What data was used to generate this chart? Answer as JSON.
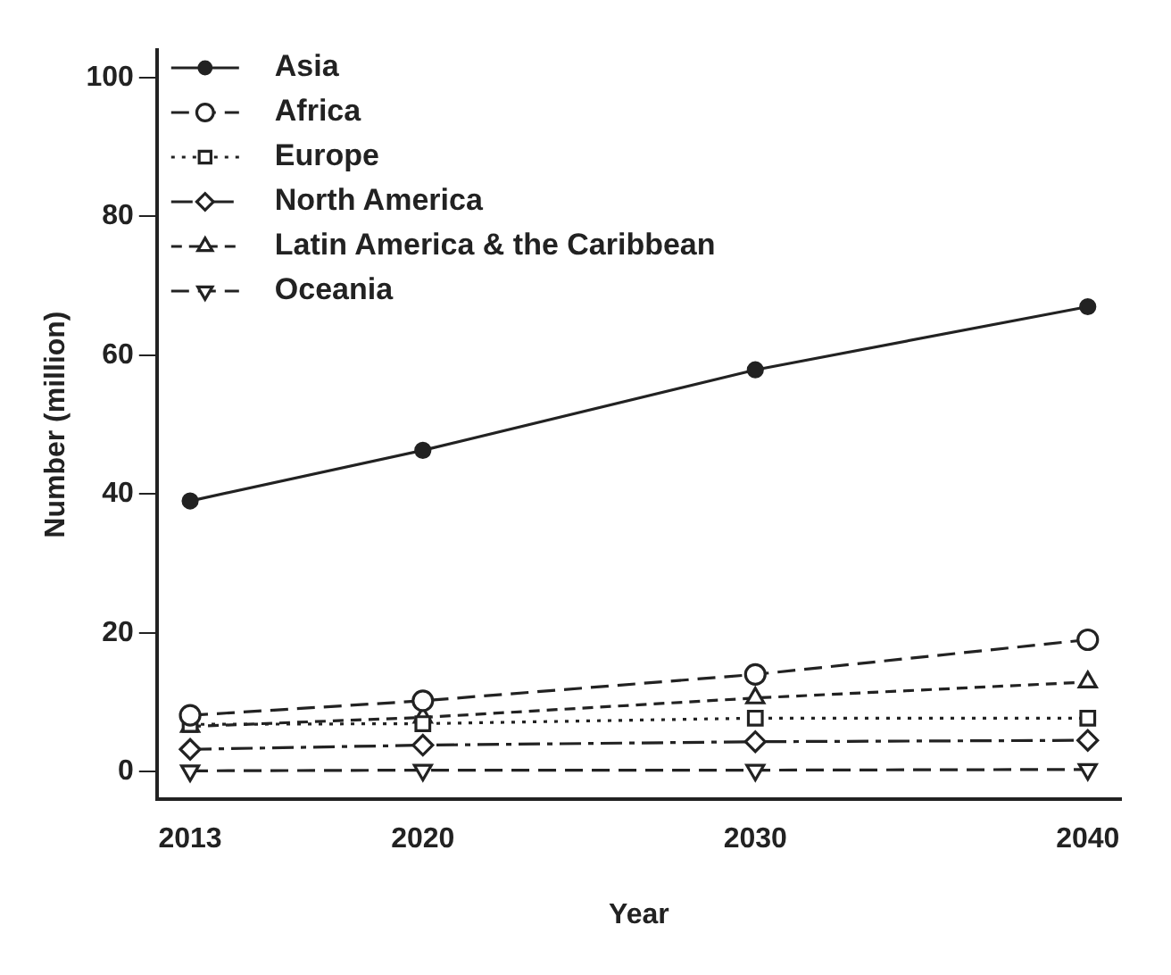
{
  "chart_data": {
    "type": "line",
    "xlabel": "Year",
    "ylabel": "Number (million)",
    "x": [
      2013,
      2020,
      2030,
      2040
    ],
    "xlim": [
      2012,
      2041
    ],
    "xticks": [
      2013,
      2020,
      2030,
      2040
    ],
    "ylim": [
      -4,
      104
    ],
    "yticks": [
      0,
      20,
      40,
      60,
      80,
      100
    ],
    "grid": false,
    "legend": "top left",
    "series": [
      {
        "name": "Asia",
        "color": "#222222",
        "values": [
          39.0,
          46.3,
          57.9,
          67.0
        ],
        "marker": "circle",
        "line_style": "solid"
      },
      {
        "name": "Africa",
        "color": "#222222",
        "values": [
          8.1,
          10.2,
          14.0,
          19.0
        ],
        "marker": "circle",
        "line_style": "dashed"
      },
      {
        "name": "Europe",
        "color": "#222222",
        "values": [
          6.8,
          6.9,
          7.7,
          7.7
        ],
        "marker": "square",
        "line_style": "dotted"
      },
      {
        "name": "North America",
        "color": "#222222",
        "values": [
          3.2,
          3.8,
          4.3,
          4.5
        ],
        "marker": "diamond",
        "line_style": "dashed"
      },
      {
        "name": "Latin America & the Caribbean",
        "color": "#222222",
        "values": [
          6.5,
          7.8,
          10.6,
          12.9
        ],
        "marker": "triangle",
        "line_style": "dashed"
      },
      {
        "name": "Oceania",
        "color": "#222222",
        "values": [
          0.1,
          0.2,
          0.2,
          0.3
        ],
        "marker": "triangle",
        "line_style": "dashed"
      }
    ]
  }
}
